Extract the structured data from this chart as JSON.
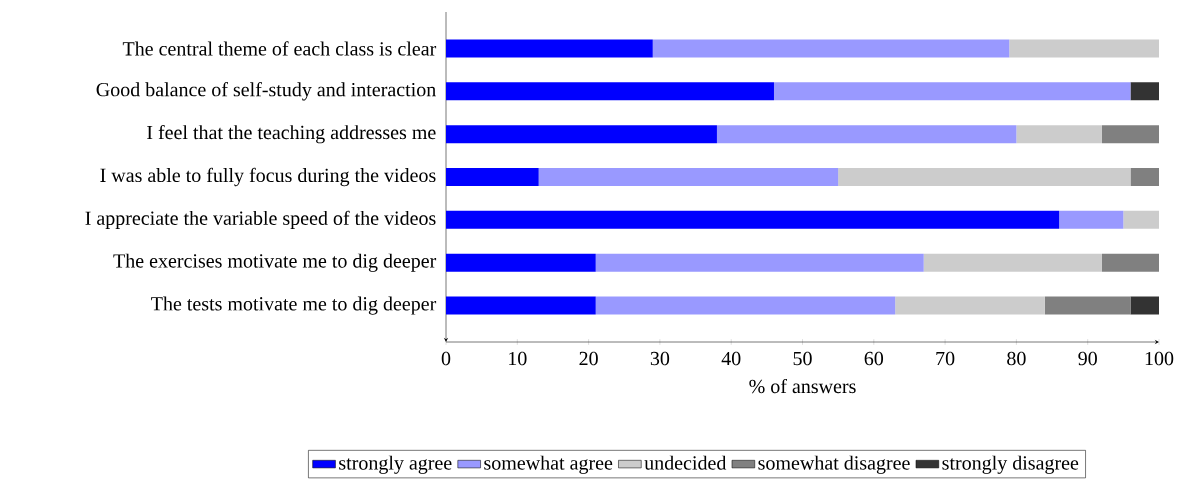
{
  "chart_data": {
    "type": "bar",
    "orientation": "horizontal",
    "stacked": true,
    "categories": [
      "The central theme of each class is clear",
      "Good balance of self-study and interaction",
      "I feel that the teaching addresses me",
      "I was able to fully focus during the videos",
      "I appreciate the variable speed of the videos",
      "The exercises motivate me to dig deeper",
      "The tests motivate me to dig deeper"
    ],
    "series": [
      {
        "name": "strongly agree",
        "color": "#0000ff",
        "values": [
          29,
          46,
          38,
          13,
          86,
          21,
          21
        ]
      },
      {
        "name": "somewhat agree",
        "color": "#9999ff",
        "values": [
          50,
          50,
          42,
          42,
          9,
          46,
          42
        ]
      },
      {
        "name": "undecided",
        "color": "#cccccc",
        "values": [
          21,
          0,
          12,
          41,
          5,
          25,
          21
        ]
      },
      {
        "name": "somewhat disagree",
        "color": "#808080",
        "values": [
          0,
          0,
          8,
          4,
          0,
          8,
          12
        ]
      },
      {
        "name": "strongly disagree",
        "color": "#333333",
        "values": [
          0,
          4,
          0,
          0,
          0,
          0,
          4
        ]
      }
    ],
    "xlim": [
      0,
      100
    ],
    "xticks": [
      0,
      10,
      20,
      30,
      40,
      50,
      60,
      70,
      80,
      90,
      100
    ],
    "xlabel": "% of answers",
    "legend": "bottom",
    "grid": false
  }
}
